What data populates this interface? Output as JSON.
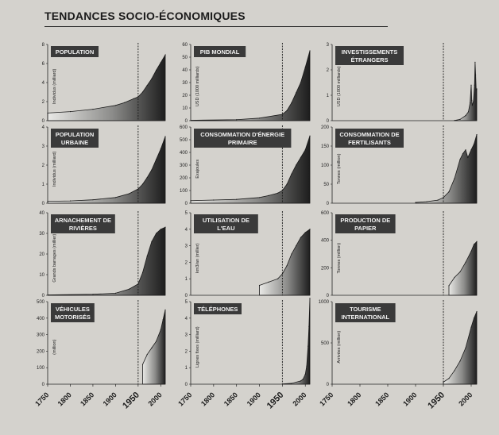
{
  "page": {
    "title": "TENDANCES SOCIO-ÉCONOMIQUES"
  },
  "colors": {
    "ink": "#1a1a1a",
    "label_box": "#3a3a3a",
    "background": "#d4d2cd"
  },
  "x_axis": {
    "ticks": [
      1750,
      1800,
      1850,
      1900,
      1950,
      2000
    ],
    "range": [
      1750,
      2010
    ],
    "reference_year": 1950
  },
  "chart_data": [
    {
      "type": "area",
      "title": "POPULATION",
      "ylabel": "Individus (milliard)",
      "ylim": [
        0,
        8
      ],
      "yticks": [
        0,
        2,
        4,
        6,
        8
      ],
      "x": [
        1750,
        1800,
        1850,
        1900,
        1920,
        1940,
        1950,
        1960,
        1970,
        1980,
        1990,
        2000,
        2010
      ],
      "y": [
        0.8,
        0.95,
        1.2,
        1.6,
        1.9,
        2.3,
        2.5,
        3.0,
        3.7,
        4.4,
        5.3,
        6.1,
        6.9
      ]
    },
    {
      "type": "area",
      "title": "PIB MONDIAL",
      "ylabel": "USD (1000 milliards)",
      "ylim": [
        0,
        60
      ],
      "yticks": [
        0,
        10,
        20,
        30,
        40,
        50,
        60
      ],
      "x": [
        1750,
        1850,
        1900,
        1950,
        1960,
        1970,
        1980,
        1990,
        2000,
        2010
      ],
      "y": [
        0.3,
        0.8,
        2,
        5,
        8,
        14,
        22,
        30,
        42,
        55
      ]
    },
    {
      "type": "area",
      "title": "INVESTISSEMENTS ÉTRANGERS",
      "ylabel": "USD (1000 milliards)",
      "ylim": [
        0,
        3
      ],
      "yticks": [
        0,
        1,
        2,
        3
      ],
      "x": [
        1970,
        1980,
        1990,
        1995,
        1998,
        2000,
        2001,
        2002,
        2004,
        2006,
        2007,
        2008,
        2009,
        2010
      ],
      "y": [
        0.01,
        0.05,
        0.2,
        0.35,
        0.7,
        1.4,
        0.8,
        0.6,
        0.75,
        1.4,
        2.3,
        1.8,
        1.2,
        1.25
      ]
    },
    {
      "type": "area",
      "title": "POPULATION URBAINE",
      "ylabel": "Individus (milliard)",
      "ylim": [
        0,
        4
      ],
      "yticks": [
        0,
        1,
        2,
        3,
        4
      ],
      "x": [
        1750,
        1800,
        1850,
        1900,
        1930,
        1950,
        1960,
        1970,
        1980,
        1990,
        2000,
        2010
      ],
      "y": [
        0.1,
        0.12,
        0.18,
        0.3,
        0.5,
        0.75,
        1.0,
        1.35,
        1.75,
        2.3,
        2.85,
        3.5
      ]
    },
    {
      "type": "area",
      "title": "CONSOMMATION D'ÉNERGIE PRIMAIRE",
      "ylabel": "Exajoules",
      "ylim": [
        0,
        600
      ],
      "yticks": [
        0,
        100,
        200,
        300,
        400,
        500,
        600
      ],
      "x": [
        1750,
        1800,
        1850,
        1900,
        1920,
        1940,
        1950,
        1960,
        1970,
        1980,
        1990,
        2000,
        2010
      ],
      "y": [
        20,
        25,
        30,
        45,
        60,
        80,
        100,
        150,
        230,
        300,
        360,
        420,
        530
      ]
    },
    {
      "type": "area",
      "title": "CONSOMMATION DE FERTILISANTS",
      "ylabel": "Tonnes (million)",
      "ylim": [
        0,
        200
      ],
      "yticks": [
        0,
        50,
        100,
        150,
        200
      ],
      "x": [
        1900,
        1920,
        1940,
        1950,
        1960,
        1970,
        1980,
        1985,
        1990,
        1994,
        2000,
        2005,
        2010
      ],
      "y": [
        2,
        4,
        8,
        15,
        30,
        65,
        115,
        130,
        140,
        120,
        140,
        155,
        180
      ]
    },
    {
      "type": "area",
      "title": "ARNACHEMENT DE RIVIÈRES",
      "ylabel": "Grands barrages (millier)",
      "ylim": [
        0,
        40
      ],
      "yticks": [
        0,
        10,
        20,
        30,
        40
      ],
      "x": [
        1750,
        1850,
        1900,
        1930,
        1950,
        1960,
        1970,
        1980,
        1990,
        2000,
        2010
      ],
      "y": [
        0.2,
        0.5,
        1,
        3,
        5.5,
        11,
        19,
        26,
        30,
        32,
        33
      ]
    },
    {
      "type": "area",
      "title": "UTILISATION DE L'EAU",
      "ylabel": "km3/an (millier)",
      "ylim": [
        0,
        5
      ],
      "yticks": [
        0,
        1,
        2,
        3,
        4,
        5
      ],
      "x": [
        1900,
        1920,
        1940,
        1950,
        1960,
        1970,
        1980,
        1990,
        2000,
        2010
      ],
      "y": [
        0.6,
        0.8,
        1.0,
        1.3,
        1.8,
        2.5,
        3.0,
        3.5,
        3.8,
        4.0
      ]
    },
    {
      "type": "area",
      "title": "PRODUCTION DE PAPIER",
      "ylabel": "Tonnes (million)",
      "ylim": [
        0,
        600
      ],
      "yticks": [
        0,
        200,
        400,
        600
      ],
      "x": [
        1960,
        1970,
        1980,
        1990,
        2000,
        2005,
        2010
      ],
      "y": [
        70,
        130,
        170,
        240,
        320,
        370,
        390
      ]
    },
    {
      "type": "area",
      "title": "VÉHICULES MOTORISÉS",
      "ylabel": "(million)",
      "ylim": [
        0,
        500
      ],
      "yticks": [
        0,
        100,
        200,
        300,
        400,
        500
      ],
      "x": [
        1960,
        1970,
        1980,
        1990,
        2000,
        2005,
        2010
      ],
      "y": [
        120,
        180,
        220,
        260,
        330,
        390,
        450
      ]
    },
    {
      "type": "area",
      "title": "TÉLÉPHONES",
      "ylabel": "Lignes fixes (milliard)",
      "ylim": [
        0,
        5
      ],
      "yticks": [
        0,
        1,
        2,
        3,
        4,
        5
      ],
      "x": [
        1950,
        1970,
        1990,
        1995,
        2000,
        2003,
        2006,
        2008,
        2010
      ],
      "y": [
        0.02,
        0.05,
        0.2,
        0.3,
        0.6,
        1.1,
        2.3,
        3.5,
        5.2
      ]
    },
    {
      "type": "area",
      "title": "TOURISME INTERNATIONAL",
      "ylabel": "Arrivées (million)",
      "ylim": [
        0,
        1000
      ],
      "yticks": [
        0,
        500,
        1000
      ],
      "x": [
        1950,
        1960,
        1970,
        1980,
        1990,
        2000,
        2005,
        2010
      ],
      "y": [
        25,
        70,
        165,
        280,
        440,
        690,
        800,
        880
      ]
    }
  ]
}
